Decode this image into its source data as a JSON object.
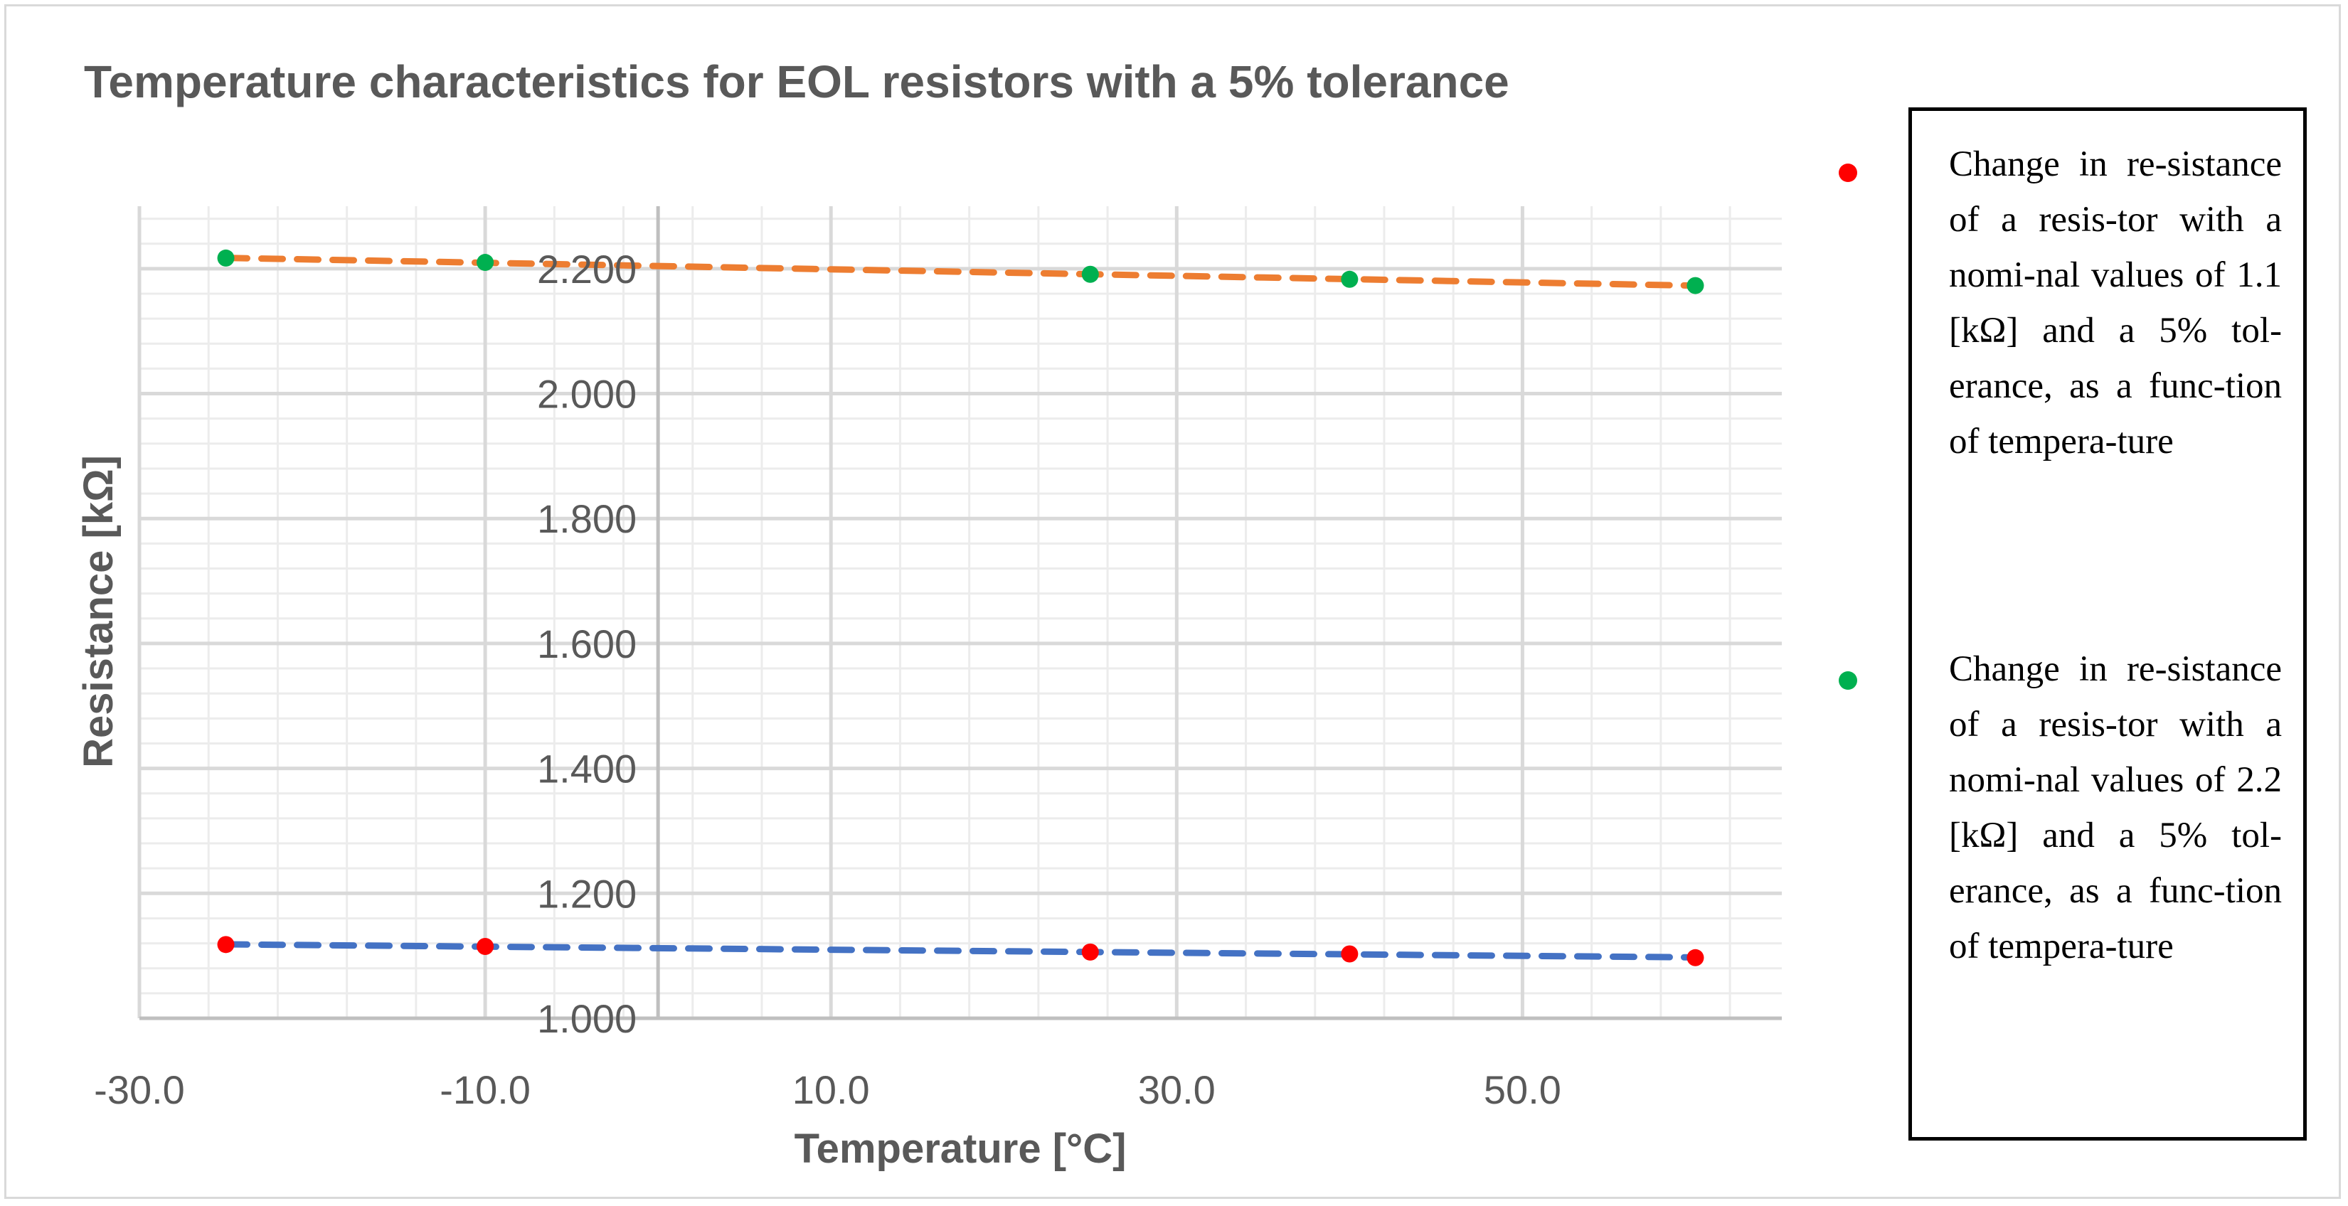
{
  "chart_data": {
    "type": "scatter",
    "title": "Temperature characteristics for EOL resistors with a 5% tolerance",
    "xlabel": "Temperature [°C]",
    "ylabel": "Resistance [kΩ]",
    "xlim": [
      -30,
      65
    ],
    "ylim": [
      1.0,
      2.3
    ],
    "x_ticks": [
      -30.0,
      -10.0,
      10.0,
      30.0,
      50.0
    ],
    "x_tick_labels": [
      "-30.0",
      "-10.0",
      "10.0",
      "30.0",
      "50.0"
    ],
    "y_ticks": [
      1.0,
      1.2,
      1.4,
      1.6,
      1.8,
      2.0,
      2.2
    ],
    "y_tick_labels": [
      "1.000",
      "1.200",
      "1.400",
      "1.600",
      "1.800",
      "2.000",
      "2.200"
    ],
    "x_tick_label_anchor_x": 0,
    "grid": true,
    "legend_position": "right",
    "series": [
      {
        "name": "Change in re-sistance of a resis-tor with a nomi-nal values of 1.1 [kΩ] and a 5% tol-erance, as a func-tion of tempera-ture",
        "marker_color": "#ff0000",
        "trendline_color": "#4472c4",
        "x": [
          -25,
          -10,
          25,
          40,
          60
        ],
        "y": [
          1.118,
          1.115,
          1.106,
          1.103,
          1.097
        ]
      },
      {
        "name": "Change in re-sistance of a resis-tor with a nomi-nal values of 2.2 [kΩ] and a 5% tol-erance, as a func-tion of tempera-ture",
        "marker_color": "#00b050",
        "trendline_color": "#ed7d31",
        "x": [
          -25,
          -10,
          25,
          40,
          60
        ],
        "y": [
          2.217,
          2.21,
          2.191,
          2.183,
          2.173
        ]
      }
    ]
  },
  "legend": {
    "entries": [
      {
        "text": "Change in re-sistance of a resis-tor with a nomi-nal values of 1.1 [kΩ] and a 5% tol-erance, as a func-tion of tempera-ture",
        "color": "#ff0000"
      },
      {
        "text": "Change in re-sistance of a resis-tor with a nomi-nal values of 2.2 [kΩ] and a 5% tol-erance, as a func-tion of tempera-ture",
        "color": "#00b050"
      }
    ]
  },
  "colors": {
    "major_grid": "#d9d9d9",
    "minor_grid": "#ececec",
    "axis_text": "#595959",
    "axis_title": "#595959"
  }
}
